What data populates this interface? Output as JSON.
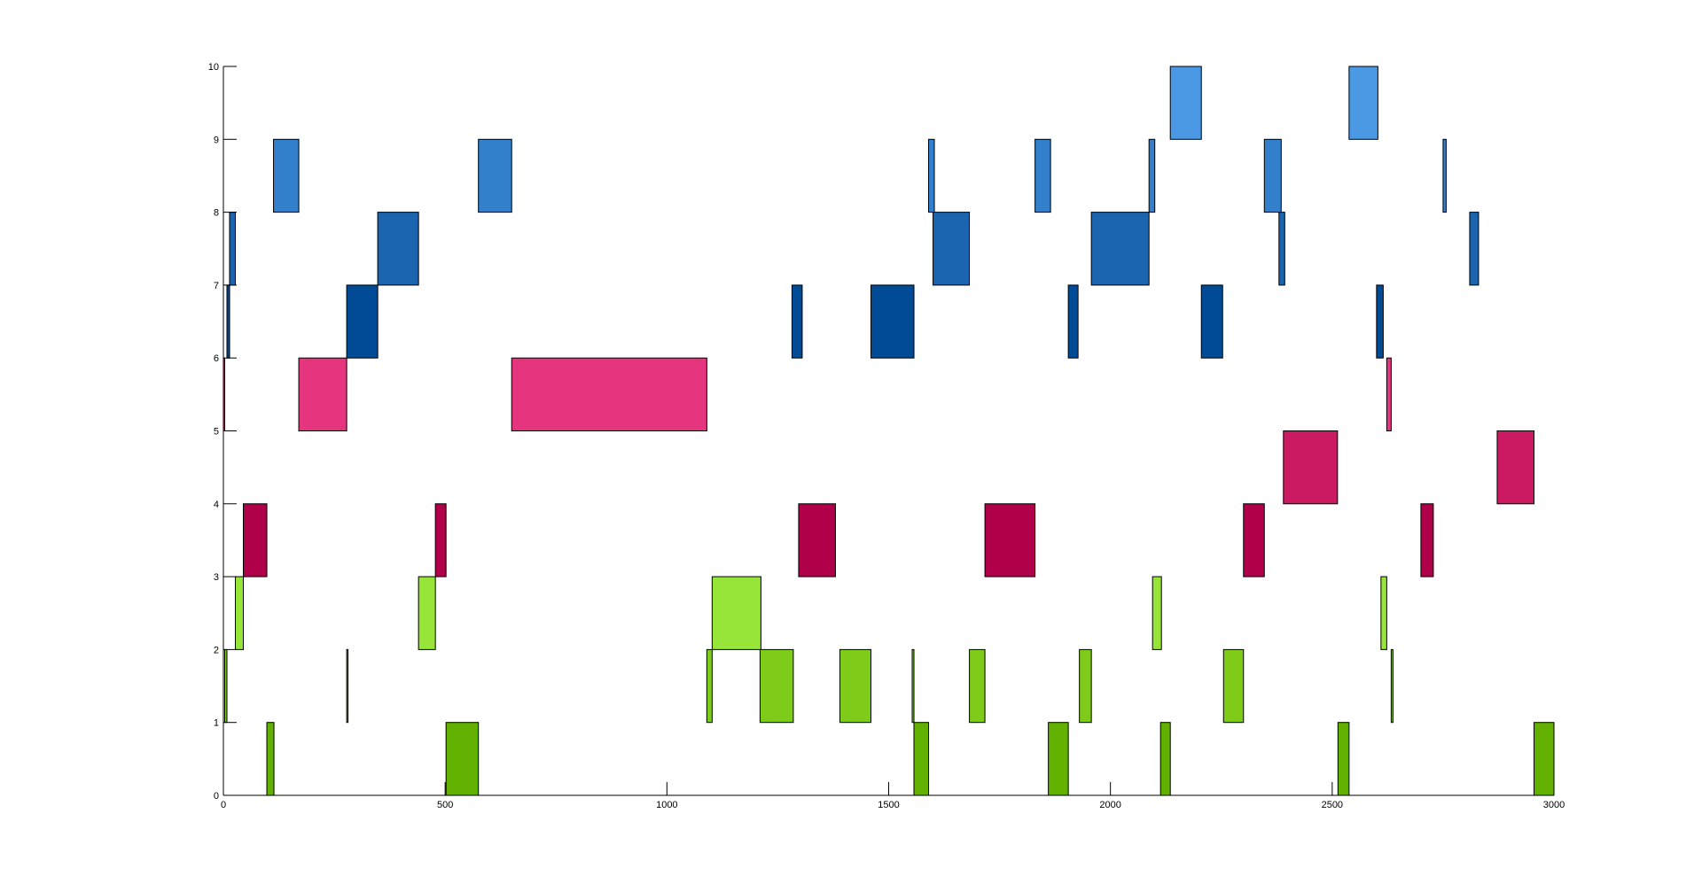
{
  "chart_data": {
    "type": "bar",
    "subtype": "horizontal-range-bars",
    "xlim": [
      0,
      3000
    ],
    "ylim": [
      0,
      10
    ],
    "grid": false,
    "legend": "none",
    "title": "",
    "xlabel": "",
    "ylabel": "",
    "x_ticks": [
      0,
      500,
      1000,
      1500,
      2000,
      2500,
      3000
    ],
    "x_tick_labels": [
      "0",
      "500",
      "1000",
      "1500",
      "2000",
      "2500",
      "3000"
    ],
    "y_ticks": [
      0,
      1,
      2,
      3,
      4,
      5,
      6,
      7,
      8,
      9,
      10
    ],
    "y_tick_labels": [
      "0",
      "1",
      "2",
      "3",
      "4",
      "5",
      "6",
      "7",
      "8",
      "9",
      "10"
    ],
    "rows": [
      {
        "row": 0,
        "color": "#62b000",
        "intervals": [
          [
            98,
            114
          ],
          [
            502,
            575
          ],
          [
            1557,
            1590
          ],
          [
            1860,
            1905
          ],
          [
            2113,
            2135
          ],
          [
            2513,
            2538
          ],
          [
            2955,
            3000
          ]
        ]
      },
      {
        "row": 1,
        "color": "#7ecb1a",
        "intervals": [
          [
            3,
            8
          ],
          [
            278,
            281
          ],
          [
            1090,
            1102
          ],
          [
            1210,
            1285
          ],
          [
            1390,
            1460
          ],
          [
            1553,
            1557
          ],
          [
            1682,
            1717
          ],
          [
            1930,
            1957
          ],
          [
            2255,
            2300
          ],
          [
            2633,
            2637
          ]
        ]
      },
      {
        "row": 2,
        "color": "#98e53a",
        "intervals": [
          [
            27,
            45
          ],
          [
            440,
            478
          ],
          [
            1102,
            1212
          ],
          [
            2095,
            2115
          ],
          [
            2610,
            2623
          ]
        ]
      },
      {
        "row": 3,
        "color": "#b00049",
        "intervals": [
          [
            45,
            98
          ],
          [
            478,
            502
          ],
          [
            1297,
            1380
          ],
          [
            1717,
            1830
          ],
          [
            2300,
            2347
          ],
          [
            2700,
            2728
          ]
        ]
      },
      {
        "row": 4,
        "color": "#cb1a62",
        "intervals": [
          [
            2390,
            2512
          ],
          [
            2872,
            2955
          ]
        ]
      },
      {
        "row": 5,
        "color": "#e5357f",
        "intervals": [
          [
            0,
            3
          ],
          [
            170,
            278
          ],
          [
            650,
            1090
          ],
          [
            2623,
            2633
          ]
        ]
      },
      {
        "row": 6,
        "color": "#004a96",
        "intervals": [
          [
            8,
            14
          ],
          [
            278,
            348
          ],
          [
            1282,
            1305
          ],
          [
            1460,
            1557
          ],
          [
            1905,
            1927
          ],
          [
            2205,
            2253
          ],
          [
            2600,
            2615
          ]
        ]
      },
      {
        "row": 7,
        "color": "#1a64b0",
        "intervals": [
          [
            14,
            27
          ],
          [
            348,
            440
          ],
          [
            1600,
            1682
          ],
          [
            1957,
            2087
          ],
          [
            2380,
            2393
          ],
          [
            2810,
            2830
          ]
        ]
      },
      {
        "row": 8,
        "color": "#327fcb",
        "intervals": [
          [
            113,
            170
          ],
          [
            575,
            650
          ],
          [
            1590,
            1603
          ],
          [
            1830,
            1865
          ],
          [
            2087,
            2100
          ],
          [
            2347,
            2385
          ],
          [
            2750,
            2757
          ]
        ]
      },
      {
        "row": 9,
        "color": "#4b99e5",
        "intervals": [
          [
            2135,
            2205
          ],
          [
            2538,
            2603
          ]
        ]
      }
    ]
  }
}
